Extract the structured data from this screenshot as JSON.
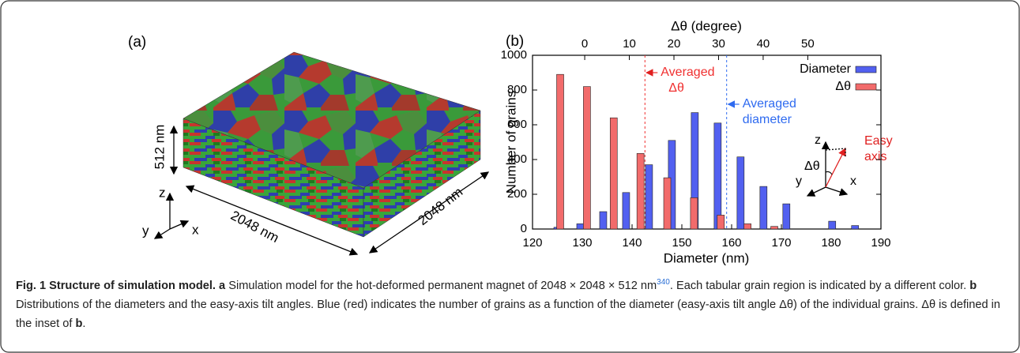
{
  "panel_a": {
    "label": "(a)",
    "height": "512 nm",
    "width": "2048 nm",
    "depth": "2048 nm",
    "axes": {
      "z": "z",
      "y": "y",
      "x": "x"
    }
  },
  "chart_data": {
    "type": "bar",
    "panel_label": "(b)",
    "xlabel": "Diameter (nm)",
    "x2label": "Δθ (degree)",
    "ylabel": "Number of grains",
    "xlim": [
      120,
      190
    ],
    "xticks": [
      120,
      130,
      140,
      150,
      160,
      170,
      180,
      190
    ],
    "x2lim": [
      -11.7,
      66.4
    ],
    "x2ticks": [
      0,
      10,
      20,
      30,
      40,
      50
    ],
    "ylim": [
      0,
      1000
    ],
    "yticks": [
      0,
      200,
      400,
      600,
      800,
      1000
    ],
    "legend": "upper right",
    "series": [
      {
        "name": "Diameter",
        "color": "#5260f0",
        "x": [
          125,
          129.6,
          134.2,
          138.8,
          143.4,
          148,
          152.6,
          157.2,
          161.8,
          166.4,
          171,
          180.2,
          184.8
        ],
        "values": [
          10,
          30,
          100,
          210,
          370,
          510,
          670,
          610,
          415,
          245,
          145,
          45,
          20
        ]
      },
      {
        "name": "Δθ",
        "color": "#f26b6b",
        "axis": "x2",
        "x": [
          -5.5,
          0.5,
          6.5,
          12.5,
          18.5,
          24.5,
          30.5,
          36.5,
          42.5
        ],
        "values": [
          890,
          820,
          640,
          435,
          295,
          180,
          80,
          30,
          15
        ]
      }
    ],
    "reference_lines": [
      {
        "axis": "x2",
        "value": 13.5,
        "color": "#f03030",
        "label": [
          "Averaged",
          "Δθ"
        ]
      },
      {
        "axis": "x",
        "value": 159,
        "color": "#2f6bf0",
        "label": [
          "Averaged",
          "diameter"
        ]
      }
    ],
    "inset": {
      "z": "z",
      "y": "y",
      "x": "x",
      "angle": "Δθ",
      "easy_axis": [
        "Easy",
        "axis"
      ]
    }
  },
  "caption": {
    "title": "Fig. 1 Structure of simulation model.",
    "a_label": "a",
    "a_text": "Simulation model for the hot-deformed permanent magnet of 2048 × 2048 × 512 nm",
    "a_ref": "340",
    "a_text2": ". Each tabular grain region is indicated by a different color.",
    "b_label": "b",
    "b_text": "Distributions of the diameters and the easy-axis tilt angles. Blue (red) indicates the number of grains as a function of the diameter (easy-axis tilt angle Δθ) of the individual grains. Δθ is defined in the inset of",
    "b_ref": "b",
    "end": "."
  }
}
